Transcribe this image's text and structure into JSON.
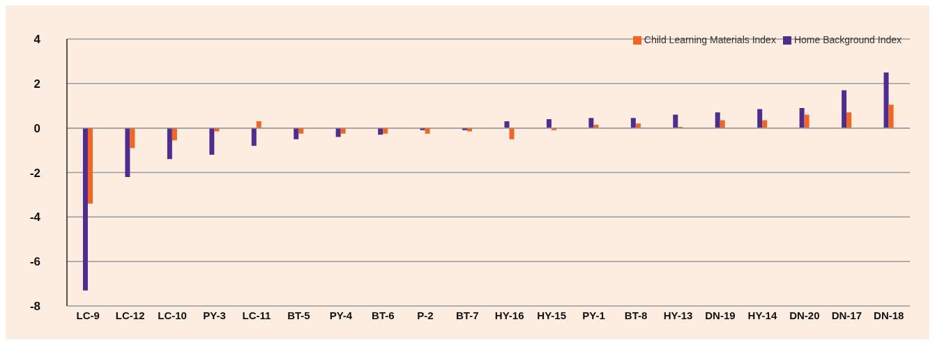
{
  "chart_data": {
    "type": "bar",
    "categories": [
      "LC-9",
      "LC-12",
      "LC-10",
      "PY-3",
      "LC-11",
      "BT-5",
      "PY-4",
      "BT-6",
      "P-2",
      "BT-7",
      "HY-16",
      "HY-15",
      "PY-1",
      "BT-8",
      "HY-13",
      "DN-19",
      "HY-14",
      "DN-20",
      "DN-17",
      "DN-18"
    ],
    "series": [
      {
        "name": "Home Background Index",
        "color": "#4f2d8f",
        "values": [
          -7.3,
          -2.2,
          -1.4,
          -1.2,
          -0.8,
          -0.5,
          -0.4,
          -0.3,
          -0.1,
          -0.1,
          0.3,
          0.4,
          0.45,
          0.45,
          0.6,
          0.7,
          0.85,
          0.9,
          1.7,
          2.5
        ]
      },
      {
        "name": "Child Learning Materials Index",
        "color": "#f26522",
        "values": [
          -3.4,
          -0.9,
          -0.55,
          -0.15,
          0.3,
          -0.25,
          -0.25,
          -0.25,
          -0.25,
          -0.15,
          -0.5,
          -0.1,
          0.15,
          0.2,
          0.05,
          0.35,
          0.35,
          0.6,
          0.7,
          1.05
        ]
      }
    ],
    "ylim": [
      -8,
      4
    ],
    "yticks": [
      -8,
      -6,
      -4,
      -2,
      0,
      2,
      4
    ],
    "grid": "y",
    "legend": "top right"
  }
}
